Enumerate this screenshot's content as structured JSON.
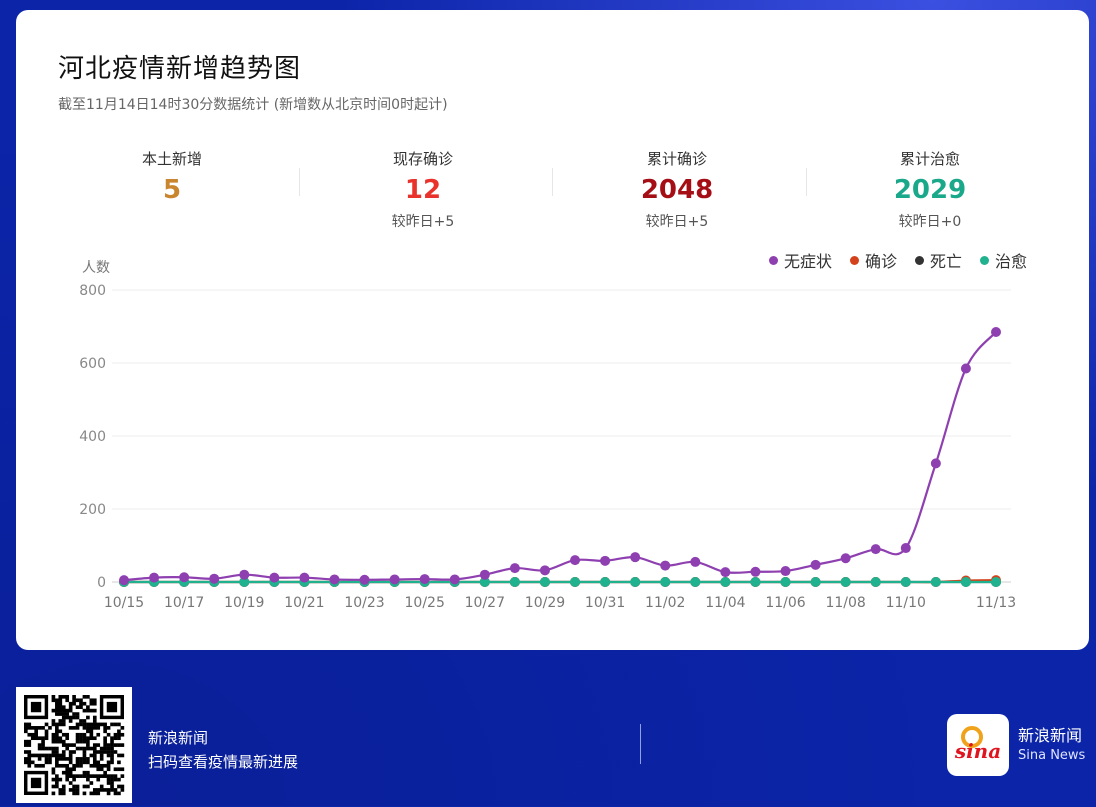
{
  "header": {
    "title": "河北疫情新增趋势图",
    "subtitle": "截至11月14日14时30分数据统计 (新增数从北京时间0时起计)"
  },
  "stats": [
    {
      "label": "本土新增",
      "value": "5",
      "change": "",
      "color": "#c9862e"
    },
    {
      "label": "现存确诊",
      "value": "12",
      "change": "较昨日+5",
      "color": "#e8322b"
    },
    {
      "label": "累计确诊",
      "value": "2048",
      "change": "较昨日+5",
      "color": "#a50e14"
    },
    {
      "label": "累计治愈",
      "value": "2029",
      "change": "较昨日+0",
      "color": "#1aa88a"
    }
  ],
  "legend": [
    {
      "name": "无症状",
      "color": "#8e3fb0"
    },
    {
      "name": "确诊",
      "color": "#d4421c"
    },
    {
      "name": "死亡",
      "color": "#333333"
    },
    {
      "name": "治愈",
      "color": "#20b28f"
    }
  ],
  "chart_data": {
    "type": "line",
    "ylabel": "人数",
    "ylim": [
      0,
      800
    ],
    "yticks": [
      "0",
      "200",
      "400",
      "600",
      "800"
    ],
    "x": [
      "10/15",
      "10/16",
      "10/17",
      "10/18",
      "10/19",
      "10/20",
      "10/21",
      "10/22",
      "10/23",
      "10/24",
      "10/25",
      "10/26",
      "10/27",
      "10/28",
      "10/29",
      "10/30",
      "10/31",
      "11/01",
      "11/02",
      "11/03",
      "11/04",
      "11/05",
      "11/06",
      "11/07",
      "11/08",
      "11/09",
      "11/10",
      "11/11",
      "11/12",
      "11/13"
    ],
    "xtick_labels": [
      "10/15",
      "10/17",
      "10/19",
      "10/21",
      "10/23",
      "10/25",
      "10/27",
      "10/29",
      "10/31",
      "11/02",
      "11/04",
      "11/06",
      "11/08",
      "11/10",
      "11/13"
    ],
    "series": [
      {
        "name": "无症状",
        "color": "#8e3fb0",
        "values": [
          5,
          12,
          13,
          9,
          20,
          12,
          12,
          7,
          6,
          7,
          8,
          7,
          20,
          38,
          32,
          60,
          58,
          68,
          45,
          55,
          27,
          28,
          30,
          47,
          65,
          90,
          93,
          325,
          585,
          685
        ]
      },
      {
        "name": "确诊",
        "color": "#d4421c",
        "values": [
          0,
          0,
          0,
          0,
          0,
          0,
          0,
          0,
          0,
          0,
          0,
          0,
          0,
          0,
          0,
          0,
          0,
          0,
          0,
          0,
          0,
          0,
          0,
          0,
          0,
          0,
          0,
          0,
          4,
          5
        ]
      },
      {
        "name": "死亡",
        "color": "#333333",
        "values": [
          0,
          0,
          0,
          0,
          0,
          0,
          0,
          0,
          0,
          0,
          0,
          0,
          0,
          0,
          0,
          0,
          0,
          0,
          0,
          0,
          0,
          0,
          0,
          0,
          0,
          0,
          0,
          0,
          0,
          0
        ]
      },
      {
        "name": "治愈",
        "color": "#20b28f",
        "values": [
          0,
          0,
          0,
          0,
          0,
          0,
          0,
          0,
          0,
          0,
          0,
          0,
          0,
          0,
          0,
          0,
          0,
          0,
          0,
          0,
          0,
          0,
          0,
          0,
          0,
          0,
          0,
          0,
          0,
          0
        ]
      }
    ]
  },
  "footer": {
    "brand": "新浪新闻",
    "scan_text": "扫码查看疫情最新进展",
    "logo_brand": "新浪新闻",
    "logo_en": "Sina News",
    "logo_mark": "sina"
  }
}
